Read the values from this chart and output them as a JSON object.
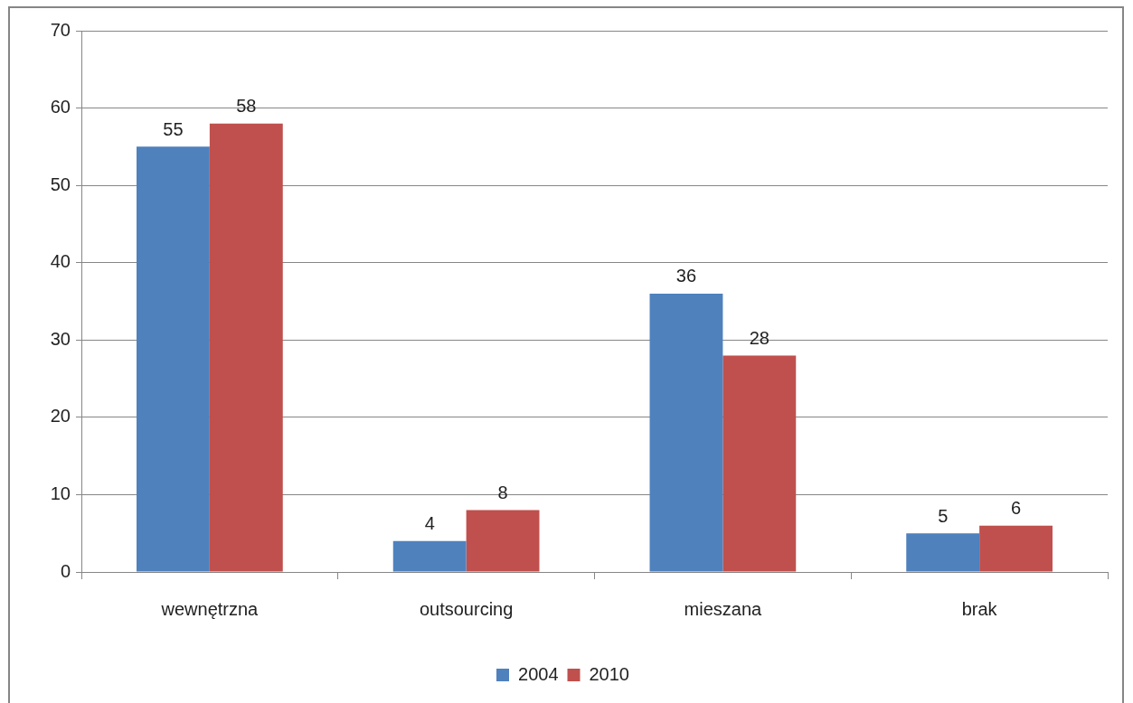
{
  "chart_data": {
    "type": "bar",
    "categories": [
      "wewnętrzna",
      "outsourcing",
      "mieszana",
      "brak"
    ],
    "series": [
      {
        "name": "2004",
        "color": "#4f81bd",
        "values": [
          55,
          4,
          36,
          5
        ]
      },
      {
        "name": "2010",
        "color": "#c0504d",
        "values": [
          58,
          8,
          28,
          6
        ]
      }
    ],
    "ylim": [
      0,
      70
    ],
    "yticks": [
      0,
      10,
      20,
      30,
      40,
      50,
      60,
      70
    ],
    "grid": "y",
    "legend": "bottom",
    "data_labels": true
  }
}
